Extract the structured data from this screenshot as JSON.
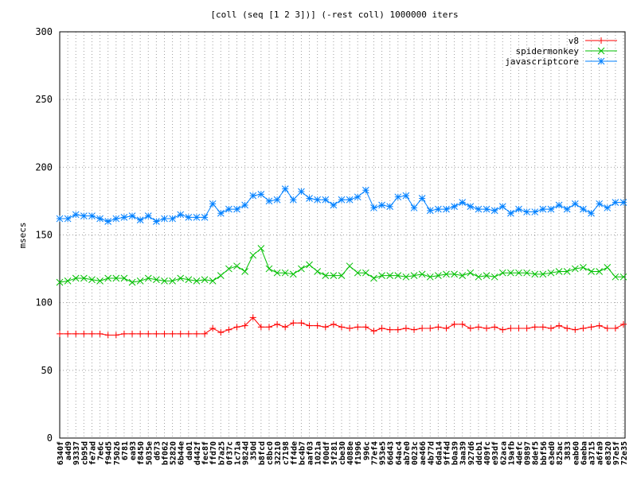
{
  "chart_data": {
    "type": "line",
    "title": "[coll (seq [1 2 3])] (-rest coll) 1000000 iters",
    "y_label": "msecs",
    "categories": [
      "6340f",
      "a4d9",
      "93337",
      "cb95d",
      "fe7ad",
      "7e6c",
      "f94d5",
      "75026",
      "6781",
      "ea93",
      "f8450",
      "5035e",
      "d673",
      "bf062",
      "52820",
      "6b44e",
      "da01",
      "d442f",
      "fec8f",
      "ffd70",
      "b7a25",
      "0f37c",
      "1c71a",
      "9824d",
      "350d",
      "b8fcd",
      "c8bc0",
      "32210",
      "c7198",
      "ff4de",
      "bc4b7",
      "aaf03",
      "1021a",
      "f00df",
      "5f281",
      "cbe30",
      "4088e",
      "f1996",
      "996c",
      "77ef4",
      "953e5",
      "66d43",
      "64ac4",
      "ab7e0",
      "0023c",
      "ae466",
      "4b77d",
      "6da14",
      "9ff4d",
      "b0a39",
      "3aa39",
      "927d6",
      "ddcb1",
      "409fc",
      "e93df",
      "62aca",
      "19afb",
      "4defc",
      "09897",
      "8def5",
      "bbf56",
      "e3ed0",
      "825ac",
      "3833",
      "eab60",
      "6aeba",
      "a3715",
      "a6fa9",
      "e8320",
      "97e5f",
      "72e35"
    ],
    "series": [
      {
        "name": "v8",
        "color": "#ff0000",
        "marker": "plus",
        "values": [
          77,
          77,
          77,
          77,
          77,
          77,
          76,
          76,
          77,
          77,
          77,
          77,
          77,
          77,
          77,
          77,
          77,
          77,
          77,
          81,
          78,
          80,
          82,
          83,
          89,
          82,
          82,
          84,
          82,
          85,
          85,
          83,
          83,
          82,
          84,
          82,
          81,
          82,
          82,
          79,
          81,
          80,
          80,
          81,
          80,
          81,
          81,
          82,
          81,
          84,
          84,
          81,
          82,
          81,
          82,
          80,
          81,
          81,
          81,
          82,
          82,
          81,
          83,
          81,
          80,
          81,
          82,
          83,
          81,
          81,
          84
        ]
      },
      {
        "name": "spidermonkey",
        "color": "#00c000",
        "marker": "cross",
        "values": [
          115,
          116,
          118,
          118,
          117,
          116,
          118,
          118,
          118,
          115,
          116,
          118,
          117,
          116,
          116,
          118,
          117,
          116,
          117,
          116,
          120,
          125,
          127,
          123,
          135,
          140,
          125,
          122,
          122,
          121,
          125,
          128,
          123,
          120,
          120,
          120,
          127,
          122,
          122,
          118,
          120,
          120,
          120,
          119,
          120,
          121,
          119,
          120,
          121,
          121,
          120,
          122,
          119,
          120,
          119,
          122,
          122,
          122,
          122,
          121,
          121,
          122,
          123,
          123,
          125,
          126,
          123,
          123,
          126,
          119,
          119
        ]
      },
      {
        "name": "javascriptcore",
        "color": "#0080ff",
        "marker": "star",
        "values": [
          162,
          162,
          165,
          164,
          164,
          162,
          160,
          162,
          163,
          164,
          161,
          164,
          160,
          162,
          162,
          165,
          163,
          163,
          163,
          173,
          166,
          169,
          169,
          172,
          179,
          180,
          175,
          176,
          184,
          176,
          182,
          177,
          176,
          176,
          172,
          176,
          176,
          178,
          183,
          170,
          172,
          171,
          178,
          179,
          170,
          177,
          168,
          169,
          169,
          171,
          174,
          171,
          169,
          169,
          168,
          171,
          166,
          169,
          167,
          167,
          169,
          169,
          172,
          169,
          173,
          169,
          166,
          173,
          170,
          174,
          174
        ]
      }
    ],
    "ylim": [
      0,
      300
    ],
    "yticks": [
      0,
      50,
      100,
      150,
      200,
      250,
      300
    ],
    "grid": true,
    "legend": "top-right"
  }
}
